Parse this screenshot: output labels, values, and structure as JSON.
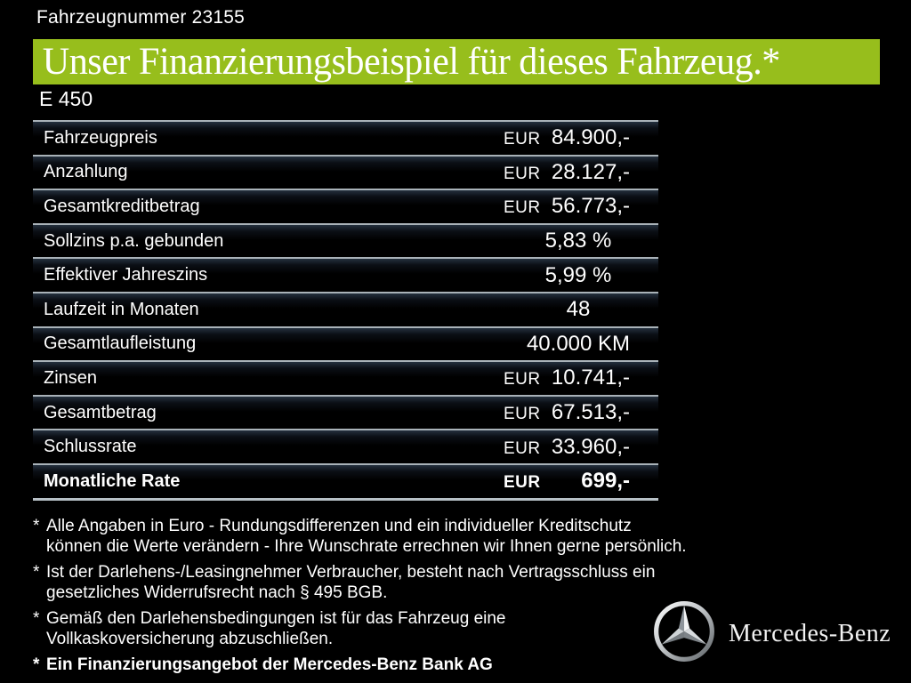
{
  "page": {
    "vehicle_number": "Fahrzeugnummer 23155",
    "title": "Unser Finanzierungsbeispiel für dieses Fahrzeug.*",
    "model": "E 450"
  },
  "table": {
    "rows": [
      {
        "label": "Fahrzeugpreis",
        "currency": "EUR",
        "value": "84.900,-"
      },
      {
        "label": "Anzahlung",
        "currency": "EUR",
        "value": "28.127,-"
      },
      {
        "label": "Gesamtkreditbetrag",
        "currency": "EUR",
        "value": "56.773,-"
      },
      {
        "label": "Sollzins p.a. gebunden",
        "currency": "",
        "value": "5,83 %"
      },
      {
        "label": "Effektiver Jahreszins",
        "currency": "",
        "value": "5,99 %"
      },
      {
        "label": "Laufzeit in Monaten",
        "currency": "",
        "value": "48"
      },
      {
        "label": "Gesamtlaufleistung",
        "currency": "",
        "value": "40.000 KM"
      },
      {
        "label": "Zinsen",
        "currency": "EUR",
        "value": "10.741,-"
      },
      {
        "label": "Gesamtbetrag",
        "currency": "EUR",
        "value": "67.513,-"
      },
      {
        "label": "Schlussrate",
        "currency": "EUR",
        "value": "33.960,-"
      },
      {
        "label": "Monatliche Rate",
        "currency": "EUR",
        "value": "699,-",
        "bold": true
      }
    ]
  },
  "footnotes": [
    {
      "marker": "*",
      "bold": false,
      "lines": [
        "Alle Angaben in Euro - Rundungsdifferenzen und ein individueller Kreditschutz",
        "können die Werte verändern - Ihre Wunschrate errechnen wir Ihnen gerne persönlich."
      ]
    },
    {
      "marker": "*",
      "bold": false,
      "lines": [
        "Ist der Darlehens-/Leasingnehmer Verbraucher, besteht nach Vertragsschluss ein",
        "gesetzliches  Widerrufsrecht nach § 495 BGB."
      ]
    },
    {
      "marker": "*",
      "bold": false,
      "lines": [
        "Gemäß den Darlehensbedingungen ist für das Fahrzeug eine",
        "Vollkaskoversicherung abzuschließen."
      ]
    },
    {
      "marker": "*",
      "bold": true,
      "lines": [
        "Ein Finanzierungsangebot der Mercedes-Benz Bank AG"
      ]
    }
  ],
  "brand": {
    "logo_icon": "mercedes-star-icon",
    "wordmark": "Mercedes-Benz"
  },
  "colors": {
    "accent_green": "#97be1c",
    "background": "#000000",
    "table_line": "#a9b2b8",
    "text": "#ffffff"
  }
}
